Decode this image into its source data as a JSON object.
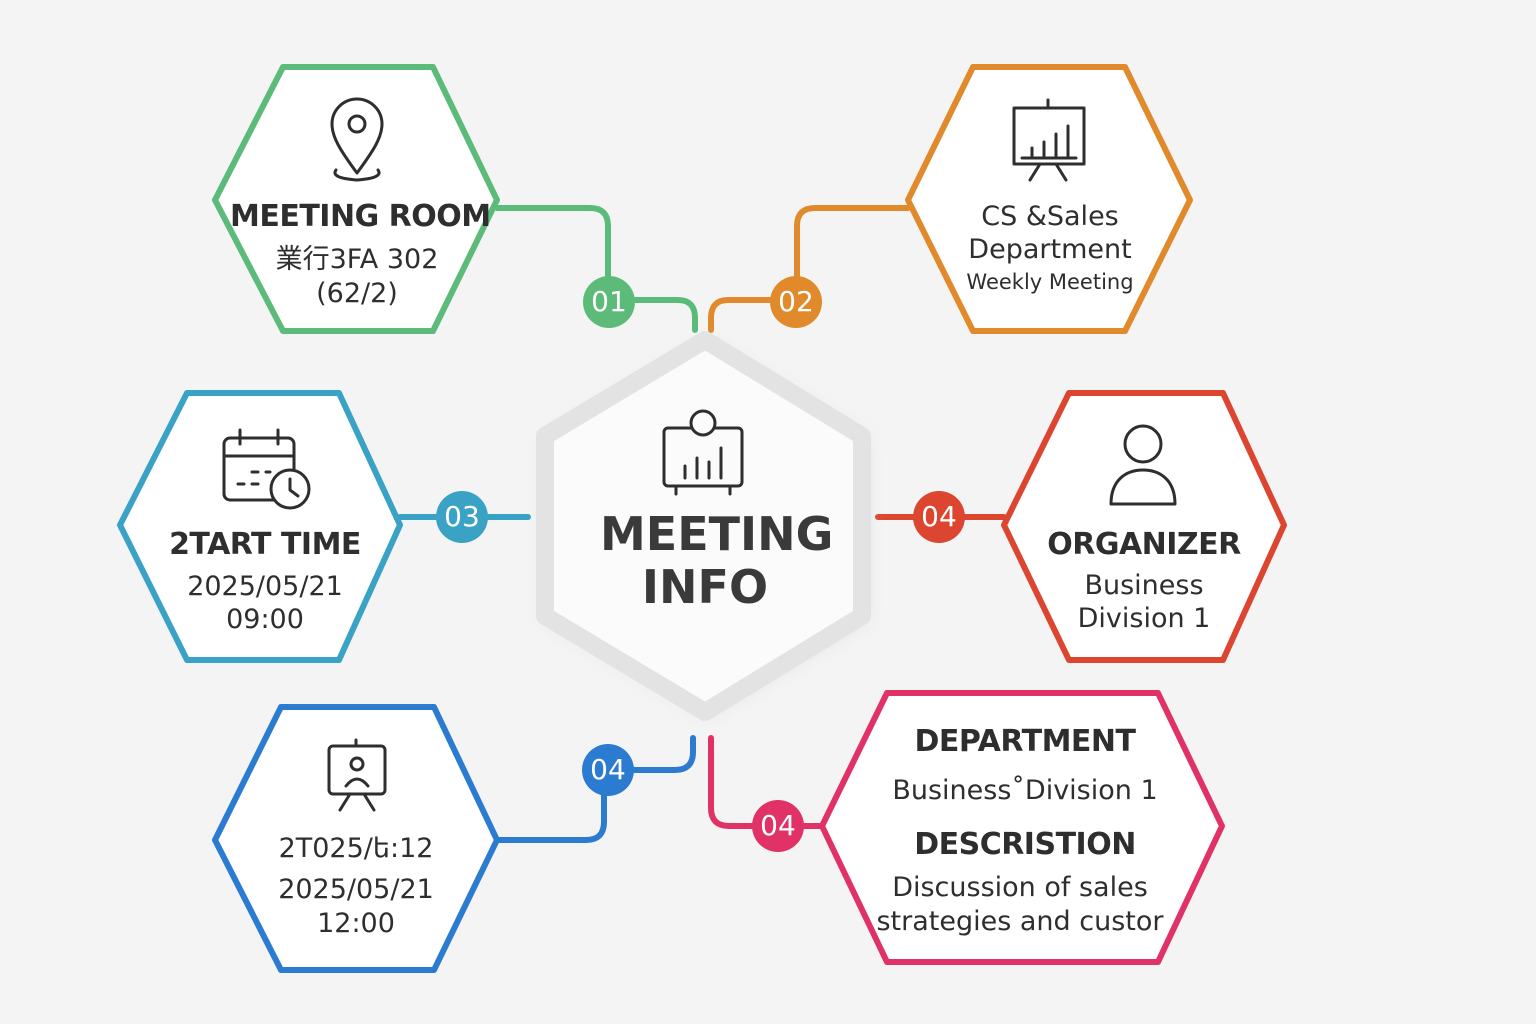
{
  "center": {
    "title_line1": "MEETING",
    "title_line2": "INFO",
    "icon": "presentation-person-chart-icon"
  },
  "nodes": {
    "room": {
      "badge": "01",
      "color": "#5dbb7a",
      "icon": "location-pin-icon",
      "title": "MEETING ROOM",
      "line1": "業行3FA 302",
      "line2": "(62/2)"
    },
    "dept": {
      "badge": "02",
      "color": "#e08a2c",
      "icon": "presentation-board-chart-icon",
      "line1": "CS &Sales",
      "line2": "Department",
      "line3": "Weekly Meeting"
    },
    "start": {
      "badge": "03",
      "color": "#3aa3c5",
      "icon": "calendar-clock-icon",
      "title": "2TART TIME",
      "line1": "2025/05/21",
      "line2": "09:00"
    },
    "organizer": {
      "badge": "04",
      "color": "#dc4630",
      "icon": "user-icon",
      "title": "ORGANIZER",
      "line1": "Business",
      "line2": "Division 1"
    },
    "end": {
      "badge": "04",
      "color": "#2b7bd0",
      "icon": "presenter-easel-icon",
      "title": "2T025/ե:12",
      "line1": "2025/05/21",
      "line2": "12:00"
    },
    "description": {
      "badge": "04",
      "color": "#e03266",
      "title": "DEPARTMENT",
      "line1": "Business˚Division 1",
      "title2": "DESCRISTION",
      "line2": "Discussion of sales",
      "line3": "strategies and custor"
    }
  }
}
